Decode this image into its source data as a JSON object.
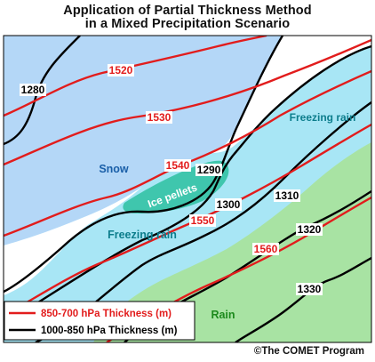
{
  "title_line1": "Application of Partial Thickness Method",
  "title_line2": "in a Mixed Precipitation Scenario",
  "regions": {
    "snow": "Snow",
    "ice_pellets": "Ice pellets",
    "freezing_rain_lower": "Freezing rain",
    "freezing_rain_upper": "Freezing rain",
    "rain": "Rain"
  },
  "red_contours": [
    "1520",
    "1530",
    "1540",
    "1550",
    "1560"
  ],
  "black_contours": [
    "1280",
    "1290",
    "1300",
    "1310",
    "1320",
    "1330"
  ],
  "legend": {
    "red_label": "850-700 hPa Thickness (m)",
    "black_label": "1000-850 hPa Thickness (m)"
  },
  "credit": "©The COMET Program",
  "colors": {
    "snow": "#b4d7f7",
    "ice_pellets": "#3fc6ad",
    "freezing_rain": "#a8e6f5",
    "rain": "#a8e3a3",
    "red_line": "#e21c1c",
    "black_line": "#000000",
    "snow_label": "#1a5fa8",
    "ice_label": "#ffffff",
    "freezing_label": "#0c7d8c",
    "rain_label": "#1c8a1c"
  }
}
